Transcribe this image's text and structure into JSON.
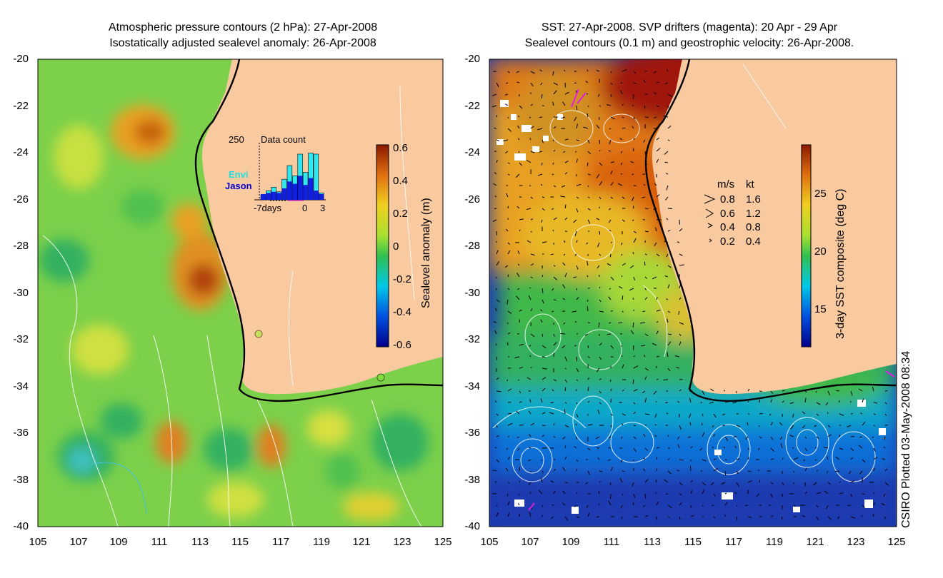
{
  "left_panel": {
    "title_line1": "Atmospheric pressure contours (2 hPa): 27-Apr-2008",
    "title_line2": "Isostatically adjusted sealevel anomaly: 26-Apr-2008",
    "colorbar_label": "Sealevel anomaly (m)",
    "colorbar_ticks": [
      "0.6",
      "0.4",
      "0.2",
      "0",
      "-0.2",
      "-0.4",
      "-0.6"
    ],
    "inset": {
      "count_max": "250",
      "title": "Data count",
      "series1": "Envi",
      "series2": "Jason",
      "x_left": "-7days",
      "x_mid": "0",
      "x_right": "3",
      "envi_values": [
        20,
        40,
        55,
        35,
        90,
        150,
        105,
        200,
        120,
        205,
        200,
        30
      ],
      "jason_values": [
        25,
        30,
        35,
        30,
        50,
        80,
        70,
        105,
        65,
        95,
        40,
        25
      ]
    },
    "colors": {
      "land": "#f9c9a0",
      "ocean": "#7cd04a"
    }
  },
  "right_panel": {
    "title_line1": "SST: 27-Apr-2008. SVP drifters (magenta): 20 Apr - 29 Apr",
    "title_line2": "Sealevel contours (0.1 m) and geostrophic velocity: 26-Apr-2008.",
    "colorbar_label": "3-day SST composite (deg C)",
    "colorbar_ticks": [
      "25",
      "20",
      "15"
    ],
    "legend_header_ms": "m/s",
    "legend_header_kt": "kt",
    "legend_rows": [
      {
        "ms": "0.8",
        "kt": "1.6"
      },
      {
        "ms": "0.6",
        "kt": "1.2"
      },
      {
        "ms": "0.4",
        "kt": "0.8"
      },
      {
        "ms": "0.2",
        "kt": "0.4"
      }
    ]
  },
  "axes": {
    "y_ticks": [
      "-20",
      "-22",
      "-24",
      "-26",
      "-28",
      "-30",
      "-32",
      "-34",
      "-36",
      "-38",
      "-40"
    ],
    "x_ticks": [
      "105",
      "107",
      "109",
      "111",
      "113",
      "115",
      "117",
      "119",
      "121",
      "123",
      "125"
    ]
  },
  "credit": "CSIRO Plotted 03-May-2008 08:34"
}
